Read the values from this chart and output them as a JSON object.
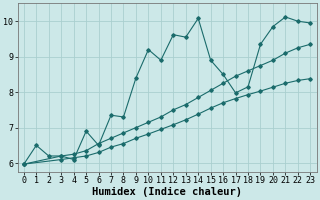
{
  "xlabel": "Humidex (Indice chaleur)",
  "bg_color": "#cce8e8",
  "grid_color": "#aacfcf",
  "line_color": "#1a6b6b",
  "xlim": [
    -0.5,
    23.5
  ],
  "ylim": [
    5.75,
    10.5
  ],
  "xticks": [
    0,
    1,
    2,
    3,
    4,
    5,
    6,
    7,
    8,
    9,
    10,
    11,
    12,
    13,
    14,
    15,
    16,
    17,
    18,
    19,
    20,
    21,
    22,
    23
  ],
  "yticks": [
    6,
    7,
    8,
    9,
    10
  ],
  "series1_x": [
    0,
    1,
    2,
    3,
    4,
    5,
    6,
    7,
    8,
    9,
    10,
    11,
    12,
    13,
    14,
    15,
    16,
    17,
    18,
    19,
    20,
    21,
    22,
    23
  ],
  "series1_y": [
    5.97,
    6.5,
    6.2,
    6.2,
    6.1,
    6.9,
    6.5,
    7.35,
    7.3,
    8.4,
    9.2,
    8.9,
    9.62,
    9.55,
    10.08,
    8.9,
    8.5,
    7.98,
    8.15,
    9.35,
    9.85,
    10.12,
    10.0,
    9.95
  ],
  "series2_x": [
    0,
    3,
    4,
    5,
    6,
    7,
    8,
    9,
    10,
    11,
    12,
    13,
    14,
    15,
    16,
    17,
    18,
    19,
    20,
    21,
    22,
    23
  ],
  "series2_y": [
    5.97,
    6.2,
    6.25,
    6.35,
    6.55,
    6.7,
    6.85,
    7.0,
    7.15,
    7.3,
    7.5,
    7.65,
    7.85,
    8.05,
    8.25,
    8.45,
    8.6,
    8.75,
    8.9,
    9.1,
    9.25,
    9.35
  ],
  "series3_x": [
    0,
    3,
    4,
    5,
    6,
    7,
    8,
    9,
    10,
    11,
    12,
    13,
    14,
    15,
    16,
    17,
    18,
    19,
    20,
    21,
    22,
    23
  ],
  "series3_y": [
    5.97,
    6.1,
    6.15,
    6.2,
    6.3,
    6.45,
    6.55,
    6.7,
    6.82,
    6.95,
    7.08,
    7.22,
    7.38,
    7.55,
    7.7,
    7.82,
    7.93,
    8.03,
    8.14,
    8.25,
    8.33,
    8.38
  ],
  "xlabel_fontsize": 7.5,
  "tick_fontsize": 6.0
}
